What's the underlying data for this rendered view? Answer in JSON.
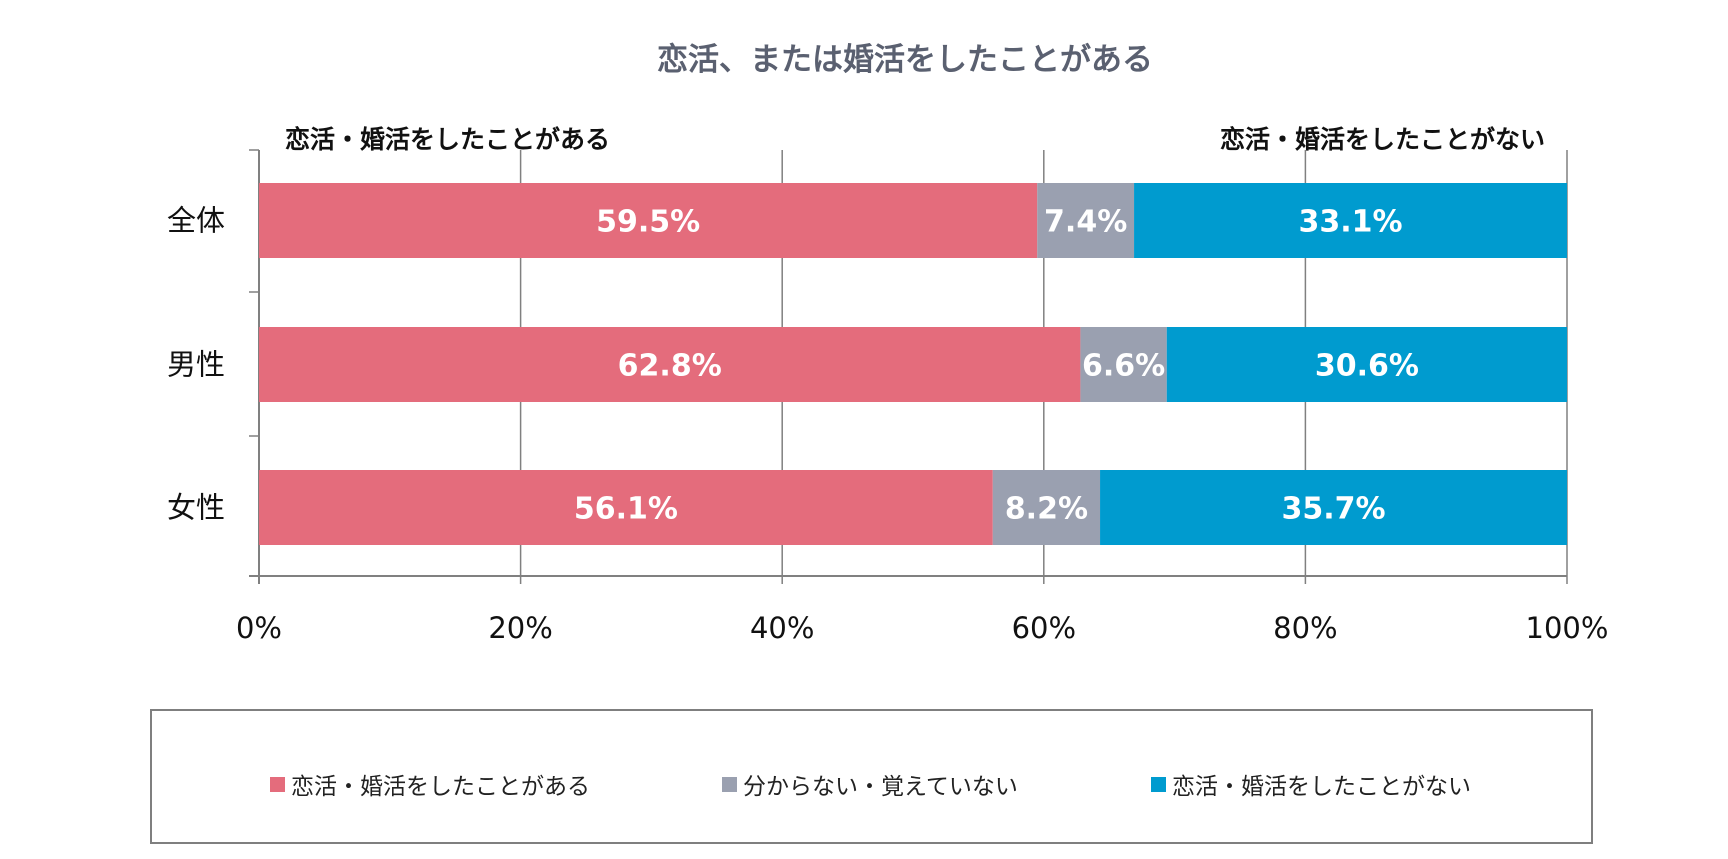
{
  "chart_data": {
    "type": "bar",
    "orientation": "horizontal",
    "stacked": true,
    "title": "恋活、または婚活をしたことがある",
    "annotations": {
      "left": "恋活・婚活をしたことがある",
      "right": "恋活・婚活をしたことがない"
    },
    "categories": [
      "全体",
      "男性",
      "女性"
    ],
    "series": [
      {
        "name": "恋活・婚活をしたことがある",
        "color": "#E46C7C",
        "values": [
          59.5,
          62.8,
          56.1
        ],
        "labels": [
          "59.5%",
          "62.8%",
          "56.1%"
        ]
      },
      {
        "name": "分からない・覚えていない",
        "color": "#9AA0B0",
        "values": [
          7.4,
          6.6,
          8.2
        ],
        "labels": [
          "7.4%",
          "6.6%",
          "8.2%"
        ]
      },
      {
        "name": "恋活・婚活をしたことがない",
        "color": "#009BCF",
        "values": [
          33.1,
          30.6,
          35.7
        ],
        "labels": [
          "33.1%",
          "30.6%",
          "35.7%"
        ]
      }
    ],
    "xlim": [
      0,
      100
    ],
    "xticks": [
      "0%",
      "20%",
      "40%",
      "60%",
      "80%",
      "100%"
    ],
    "grid": true,
    "legend_position": "bottom"
  }
}
